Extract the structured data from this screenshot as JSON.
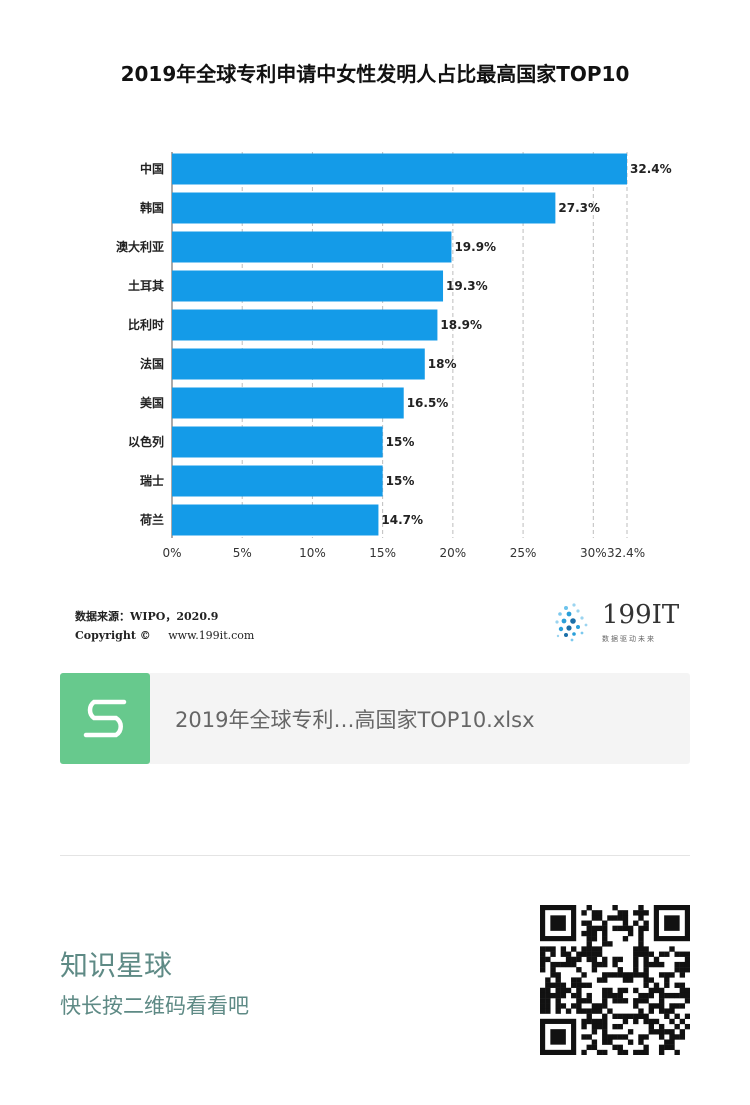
{
  "chart_data": {
    "type": "bar",
    "orientation": "horizontal",
    "title": "2019年全球专利申请中女性发明人占比最高国家TOP10",
    "categories": [
      "中国",
      "韩国",
      "澳大利亚",
      "土耳其",
      "比利时",
      "法国",
      "美国",
      "以色列",
      "瑞士",
      "荷兰"
    ],
    "values": [
      32.4,
      27.3,
      19.9,
      19.3,
      18.9,
      18,
      16.5,
      15,
      15,
      14.7
    ],
    "value_labels": [
      "32.4%",
      "27.3%",
      "19.9%",
      "19.3%",
      "18.9%",
      "18%",
      "16.5%",
      "15%",
      "15%",
      "14.7%"
    ],
    "x_ticks": [
      0,
      5,
      10,
      15,
      20,
      25,
      30,
      32.4
    ],
    "x_tick_labels": [
      "0%",
      "5%",
      "10%",
      "15%",
      "20%",
      "25%",
      "30%",
      "32.4%"
    ],
    "xlim": [
      0,
      32.4
    ],
    "bar_color": "#149be8",
    "grid": true,
    "grid_style": "dashed"
  },
  "source": "数据来源：WIPO，2020.9",
  "copyright": {
    "label": "Copyright ©",
    "url": "www.199it.com"
  },
  "logo": {
    "text": "199IT",
    "tagline": "数据驱动未来"
  },
  "file": {
    "name": "2019年全球专利…高国家TOP10.xlsx",
    "icon_color": "#67c98d"
  },
  "promo": {
    "title": "知识星球",
    "subtitle": "快长按二维码看看吧",
    "color": "#5e8a85"
  }
}
